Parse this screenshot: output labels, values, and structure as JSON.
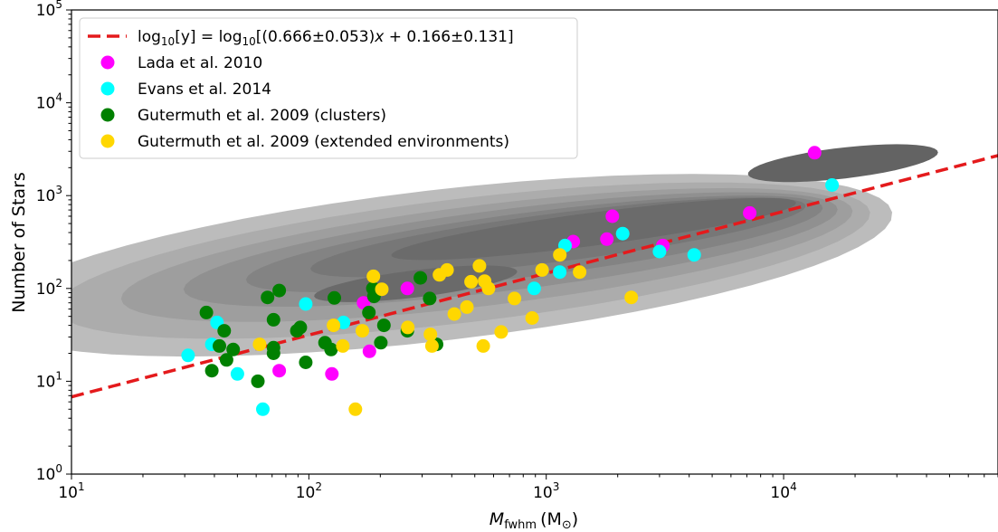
{
  "chart_data": {
    "type": "scatter",
    "xscale": "log",
    "yscale": "log",
    "xlim": [
      10,
      80000
    ],
    "ylim": [
      1,
      100000
    ],
    "xlabel_main": "M",
    "xlabel_sub": "fwhm",
    "xlabel_unit": "(M",
    "xlabel_unit_sub": "⊙",
    "xlabel_close": ")",
    "ylabel": "Number of Stars",
    "x_ticks": [
      {
        "value": 10,
        "base": "10",
        "exp": "1"
      },
      {
        "value": 100,
        "base": "10",
        "exp": "2"
      },
      {
        "value": 1000,
        "base": "10",
        "exp": "3"
      },
      {
        "value": 10000,
        "base": "10",
        "exp": "4"
      }
    ],
    "y_ticks": [
      {
        "value": 1,
        "base": "10",
        "exp": "0"
      },
      {
        "value": 10,
        "base": "10",
        "exp": "1"
      },
      {
        "value": 100,
        "base": "10",
        "exp": "2"
      },
      {
        "value": 1000,
        "base": "10",
        "exp": "3"
      },
      {
        "value": 10000,
        "base": "10",
        "exp": "4"
      },
      {
        "value": 100000,
        "base": "10",
        "exp": "5"
      }
    ],
    "legend_position": "top-left",
    "fit": {
      "label": "log10[y] = log10[(0.666±0.053)x + 0.166±0.131]",
      "label_parts": {
        "pre": "log",
        "sub1": "10",
        "mid": "[y] = log",
        "sub2": "10",
        "rest1": "[(0.666±0.053)",
        "x": "x",
        "rest2": " + 0.166±0.131]"
      },
      "slope": 0.666,
      "intercept": 0.166,
      "color": "#e41a1c"
    },
    "series": [
      {
        "name": "Lada et al. 2010",
        "color": "#ff00ff",
        "points": [
          [
            13500,
            2900
          ],
          [
            7200,
            650
          ],
          [
            3100,
            290
          ],
          [
            1900,
            600
          ],
          [
            1800,
            340
          ],
          [
            1300,
            320
          ],
          [
            260,
            100
          ],
          [
            170,
            70
          ],
          [
            180,
            21
          ],
          [
            125,
            12
          ],
          [
            75,
            13
          ]
        ]
      },
      {
        "name": "Evans et al. 2014",
        "color": "#00ffff",
        "points": [
          [
            31,
            19
          ],
          [
            39,
            25
          ],
          [
            41,
            43
          ],
          [
            50,
            12
          ],
          [
            64,
            5
          ],
          [
            97,
            68
          ],
          [
            140,
            43
          ],
          [
            890,
            100
          ],
          [
            1140,
            150
          ],
          [
            1200,
            290
          ],
          [
            2100,
            390
          ],
          [
            3000,
            250
          ],
          [
            4200,
            230
          ],
          [
            16000,
            1300
          ]
        ]
      },
      {
        "name": "Gutermuth et al. 2009 (clusters)",
        "color": "#008000",
        "points": [
          [
            37,
            55
          ],
          [
            39,
            13
          ],
          [
            42,
            24
          ],
          [
            44,
            35
          ],
          [
            45,
            17
          ],
          [
            48,
            22
          ],
          [
            61,
            10
          ],
          [
            67,
            80
          ],
          [
            71,
            46
          ],
          [
            71,
            20
          ],
          [
            75,
            95
          ],
          [
            89,
            35
          ],
          [
            92,
            38
          ],
          [
            97,
            16
          ],
          [
            117,
            26
          ],
          [
            124,
            22
          ],
          [
            128,
            79
          ],
          [
            179,
            55
          ],
          [
            186,
            100
          ],
          [
            188,
            82
          ],
          [
            201,
            26
          ],
          [
            207,
            40
          ],
          [
            295,
            130
          ],
          [
            323,
            78
          ],
          [
            345,
            25
          ],
          [
            71,
            23
          ],
          [
            260,
            35
          ]
        ]
      },
      {
        "name": "Gutermuth et al. 2009 (extended environments)",
        "color": "#ffd700",
        "points": [
          [
            62,
            25
          ],
          [
            127,
            40
          ],
          [
            139,
            24
          ],
          [
            157,
            5
          ],
          [
            168,
            35
          ],
          [
            187,
            135
          ],
          [
            203,
            98
          ],
          [
            261,
            38
          ],
          [
            325,
            32
          ],
          [
            330,
            24
          ],
          [
            355,
            140
          ],
          [
            382,
            158
          ],
          [
            410,
            53
          ],
          [
            463,
            63
          ],
          [
            482,
            118
          ],
          [
            523,
            175
          ],
          [
            543,
            24
          ],
          [
            550,
            120
          ],
          [
            571,
            100
          ],
          [
            646,
            34
          ],
          [
            735,
            78
          ],
          [
            872,
            48
          ],
          [
            960,
            158
          ],
          [
            1141,
            230
          ],
          [
            1382,
            150
          ],
          [
            2282,
            80
          ]
        ]
      }
    ]
  }
}
